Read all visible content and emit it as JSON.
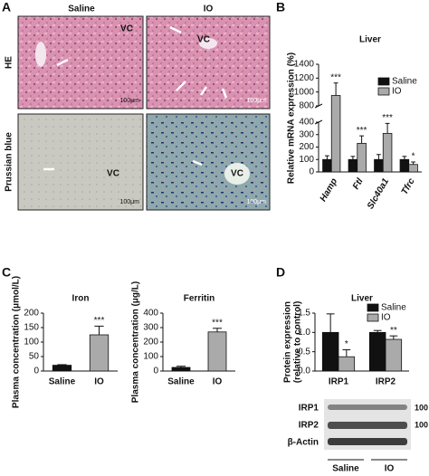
{
  "panel_a": {
    "label": "A",
    "columns": [
      "Saline",
      "IO"
    ],
    "rows": [
      "HE",
      "Prussian blue"
    ],
    "images": [
      {
        "vc": "VC",
        "scale": "100μm"
      },
      {
        "vc": "VC",
        "scale": "100μm"
      },
      {
        "vc": "VC",
        "scale": "100μm"
      },
      {
        "vc": "VC",
        "scale": "100μm"
      }
    ]
  },
  "chart_data": [
    {
      "type": "bar",
      "panel": "B",
      "title": "Liver",
      "ylabel": "Relative mRNA expression (%)",
      "categories": [
        "Hamp",
        "Ftl",
        "Slc40a1",
        "Tfrc"
      ],
      "series": [
        {
          "name": "Saline",
          "color": "#111111",
          "values": [
            100,
            100,
            100,
            100
          ],
          "errors": [
            30,
            25,
            40,
            25
          ]
        },
        {
          "name": "IO",
          "color": "#aaaaaa",
          "values": [
            950,
            230,
            310,
            60
          ],
          "errors": [
            180,
            60,
            80,
            20
          ]
        }
      ],
      "significance": [
        "***",
        "***",
        "***",
        "*"
      ],
      "ylim": [
        0,
        1400
      ],
      "axis_break": [
        400,
        800
      ],
      "yticks": [
        0,
        100,
        200,
        300,
        400,
        800,
        1000,
        1200,
        1400
      ]
    },
    {
      "type": "bar",
      "panel": "C",
      "title": "Iron",
      "ylabel": "Plasma concentration (μmol/L)",
      "categories": [
        "Saline",
        "IO"
      ],
      "colors": [
        "#111111",
        "#aaaaaa"
      ],
      "values": [
        20,
        125
      ],
      "errors": [
        2,
        30
      ],
      "significance": [
        null,
        "***"
      ],
      "ylim": [
        0,
        200
      ],
      "yticks": [
        0,
        50,
        100,
        150,
        200
      ]
    },
    {
      "type": "bar",
      "title": "Ferritin",
      "ylabel": "Plasma concentration (μg/L)",
      "categories": [
        "Saline",
        "IO"
      ],
      "colors": [
        "#111111",
        "#aaaaaa"
      ],
      "values": [
        25,
        270
      ],
      "errors": [
        8,
        25
      ],
      "significance": [
        null,
        "***"
      ],
      "ylim": [
        0,
        400
      ],
      "yticks": [
        0,
        100,
        200,
        300,
        400
      ]
    },
    {
      "type": "bar",
      "panel": "D",
      "title": "Liver",
      "ylabel": [
        "Protein expression",
        "(relative to control)"
      ],
      "categories": [
        "IRP1",
        "IRP2"
      ],
      "series": [
        {
          "name": "Saline",
          "color": "#111111",
          "values": [
            1.0,
            1.0
          ],
          "errors": [
            0.48,
            0.05
          ]
        },
        {
          "name": "IO",
          "color": "#aaaaaa",
          "values": [
            0.37,
            0.82
          ],
          "errors": [
            0.18,
            0.09
          ]
        }
      ],
      "significance": [
        "*",
        "**"
      ],
      "ylim": [
        0,
        1.5
      ],
      "yticks": [
        {
          "value": 0,
          "label": "0.0"
        },
        0.5,
        {
          "value": 1,
          "label": "1.0"
        },
        1.5
      ]
    }
  ],
  "western_blot": {
    "bands": [
      "IRP1",
      "IRP2",
      "β-Actin"
    ],
    "markers": [
      "100",
      "100"
    ],
    "groups": [
      "Saline",
      "IO"
    ]
  }
}
